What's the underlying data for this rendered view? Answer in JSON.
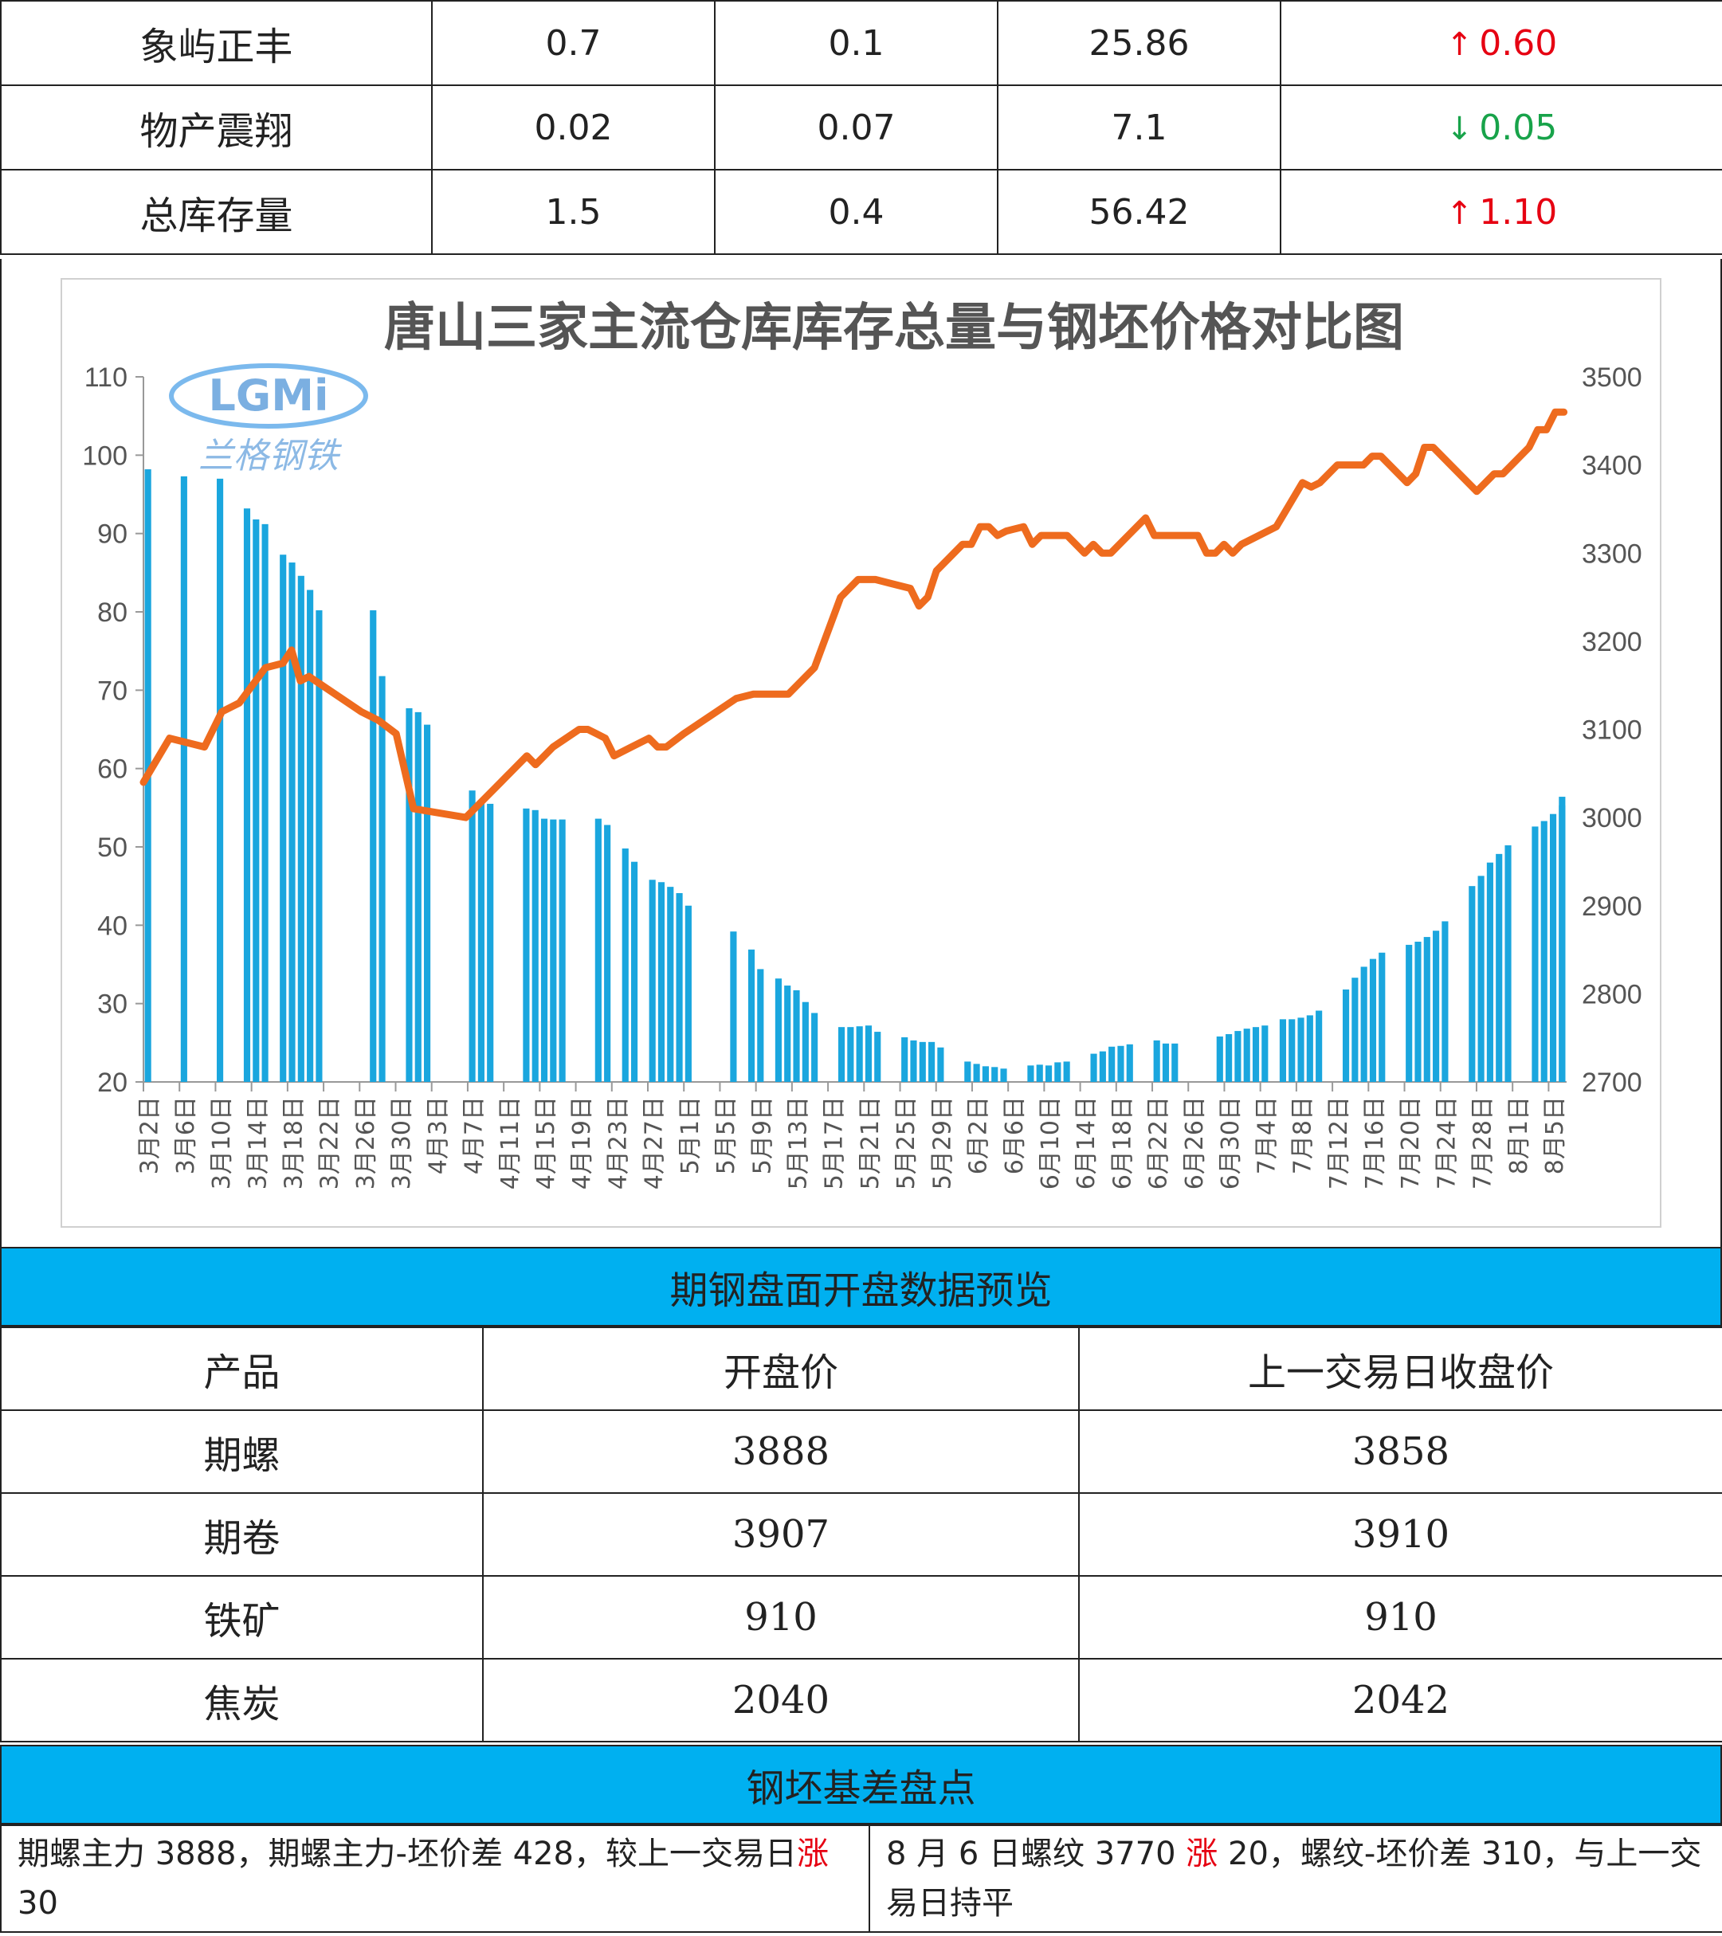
{
  "inventory_rows": [
    {
      "name": "象屿正丰",
      "v1": "0.7",
      "v2": "0.1",
      "v3": "25.86",
      "change_dir": "up",
      "change": "0.60"
    },
    {
      "name": "物产震翔",
      "v1": "0.02",
      "v2": "0.07",
      "v3": "7.1",
      "change_dir": "down",
      "change": "0.05"
    },
    {
      "name": "总库存量",
      "v1": "1.5",
      "v2": "0.4",
      "v3": "56.42",
      "change_dir": "up",
      "change": "1.10"
    }
  ],
  "arrows": {
    "up": "↑",
    "down": "↓"
  },
  "colors": {
    "up": "#e60012",
    "down": "#18a34a",
    "bar": "#1aa6de",
    "line": "#ee6b1e",
    "band": "#00b0f0"
  },
  "watermark": {
    "logo_text": "LGMi",
    "name_text": "兰格钢铁"
  },
  "chart_data": {
    "type": "bar+line",
    "title": "唐山三家主流仓库库存总量与钢坯价格对比图",
    "y_left": {
      "min": 20,
      "max": 110,
      "ticks": [
        20,
        30,
        40,
        50,
        60,
        70,
        80,
        90,
        100,
        110
      ]
    },
    "y_right": {
      "min": 2700,
      "max": 3500,
      "ticks": [
        2700,
        2800,
        2900,
        3000,
        3100,
        3200,
        3300,
        3400,
        3500
      ]
    },
    "x_labels": [
      "3月2日",
      "3月6日",
      "3月10日",
      "3月14日",
      "3月18日",
      "3月22日",
      "3月26日",
      "3月30日",
      "4月3日",
      "4月7日",
      "4月11日",
      "4月15日",
      "4月19日",
      "4月23日",
      "4月27日",
      "5月1日",
      "5月5日",
      "5月9日",
      "5月13日",
      "5月17日",
      "5月21日",
      "5月25日",
      "5月29日",
      "6月2日",
      "6月6日",
      "6月10日",
      "6月14日",
      "6月18日",
      "6月22日",
      "6月26日",
      "6月30日",
      "7月4日",
      "7月8日",
      "7月12日",
      "7月16日",
      "7月20日",
      "7月24日",
      "7月28日",
      "8月1日",
      "8月5日"
    ],
    "days_total": 158,
    "bars": [
      [
        0,
        98.2
      ],
      [
        4,
        97.3
      ],
      [
        8,
        97
      ],
      [
        11,
        93.2
      ],
      [
        12,
        91.8
      ],
      [
        13,
        91.2
      ],
      [
        15,
        87.3
      ],
      [
        16,
        86.3
      ],
      [
        17,
        84.6
      ],
      [
        18,
        82.8
      ],
      [
        19,
        80.2
      ],
      [
        25,
        80.2
      ],
      [
        26,
        71.8
      ],
      [
        29,
        67.7
      ],
      [
        30,
        67.2
      ],
      [
        31,
        65.6
      ],
      [
        36,
        57.2
      ],
      [
        37,
        55.7
      ],
      [
        38,
        55.5
      ],
      [
        42,
        54.9
      ],
      [
        43,
        54.7
      ],
      [
        44,
        53.6
      ],
      [
        45,
        53.5
      ],
      [
        46,
        53.5
      ],
      [
        50,
        53.6
      ],
      [
        51,
        52.8
      ],
      [
        53,
        49.8
      ],
      [
        54,
        48.1
      ],
      [
        56,
        45.8
      ],
      [
        57,
        45.5
      ],
      [
        58,
        44.9
      ],
      [
        59,
        44.1
      ],
      [
        60,
        42.5
      ],
      [
        65,
        39.2
      ],
      [
        67,
        36.9
      ],
      [
        68,
        34.4
      ],
      [
        70,
        33.2
      ],
      [
        71,
        32.3
      ],
      [
        72,
        31.7
      ],
      [
        73,
        30.2
      ],
      [
        74,
        28.8
      ],
      [
        77,
        27
      ],
      [
        78,
        27
      ],
      [
        79,
        27.1
      ],
      [
        80,
        27.2
      ],
      [
        81,
        26.4
      ],
      [
        84,
        25.7
      ],
      [
        85,
        25.3
      ],
      [
        86,
        25.1
      ],
      [
        87,
        25.1
      ],
      [
        88,
        24.4
      ],
      [
        91,
        22.6
      ],
      [
        92,
        22.3
      ],
      [
        93,
        22
      ],
      [
        94,
        21.9
      ],
      [
        95,
        21.7
      ],
      [
        98,
        22.1
      ],
      [
        99,
        22.2
      ],
      [
        100,
        22.1
      ],
      [
        101,
        22.5
      ],
      [
        102,
        22.6
      ],
      [
        105,
        23.6
      ],
      [
        106,
        23.9
      ],
      [
        107,
        24.5
      ],
      [
        108,
        24.6
      ],
      [
        109,
        24.8
      ],
      [
        112,
        25.3
      ],
      [
        113,
        24.9
      ],
      [
        114,
        24.9
      ],
      [
        119,
        25.8
      ],
      [
        120,
        26.1
      ],
      [
        121,
        26.5
      ],
      [
        122,
        26.8
      ],
      [
        123,
        27
      ],
      [
        124,
        27.2
      ],
      [
        126,
        28
      ],
      [
        127,
        28
      ],
      [
        128,
        28.2
      ],
      [
        129,
        28.5
      ],
      [
        130,
        29.1
      ],
      [
        133,
        31.8
      ],
      [
        134,
        33.3
      ],
      [
        135,
        34.7
      ],
      [
        136,
        35.7
      ],
      [
        137,
        36.5
      ],
      [
        140,
        37.5
      ],
      [
        141,
        37.9
      ],
      [
        142,
        38.5
      ],
      [
        143,
        39.3
      ],
      [
        144,
        40.5
      ],
      [
        147,
        45
      ],
      [
        148,
        46.3
      ],
      [
        149,
        48
      ],
      [
        150,
        49.1
      ],
      [
        151,
        50.2
      ],
      [
        154,
        52.6
      ],
      [
        155,
        53.3
      ],
      [
        156,
        54.2
      ],
      [
        157,
        55.3
      ],
      [
        158,
        56.4
      ]
    ],
    "line": [
      [
        0,
        3040
      ],
      [
        3,
        3090
      ],
      [
        7,
        3080
      ],
      [
        9,
        3120
      ],
      [
        11,
        3130
      ],
      [
        14,
        3170
      ],
      [
        16,
        3175
      ],
      [
        17,
        3190
      ],
      [
        18,
        3155
      ],
      [
        19,
        3160
      ],
      [
        25,
        3120
      ],
      [
        27,
        3110
      ],
      [
        29,
        3095
      ],
      [
        31,
        3010
      ],
      [
        37,
        3000
      ],
      [
        41,
        3040
      ],
      [
        44,
        3070
      ],
      [
        45,
        3060
      ],
      [
        47,
        3080
      ],
      [
        50,
        3100
      ],
      [
        51,
        3100
      ],
      [
        52,
        3095
      ],
      [
        53,
        3090
      ],
      [
        54,
        3070
      ],
      [
        56,
        3080
      ],
      [
        58,
        3090
      ],
      [
        59,
        3080
      ],
      [
        60,
        3080
      ],
      [
        62,
        3095
      ],
      [
        65,
        3115
      ],
      [
        68,
        3135
      ],
      [
        70,
        3140
      ],
      [
        74,
        3140
      ],
      [
        77,
        3170
      ],
      [
        80,
        3250
      ],
      [
        82,
        3270
      ],
      [
        84,
        3270
      ],
      [
        86,
        3265
      ],
      [
        88,
        3260
      ],
      [
        89,
        3240
      ],
      [
        90,
        3250
      ],
      [
        91,
        3280
      ],
      [
        94,
        3310
      ],
      [
        95,
        3310
      ],
      [
        96,
        3330
      ],
      [
        97,
        3330
      ],
      [
        98,
        3320
      ],
      [
        99,
        3325
      ],
      [
        101,
        3330
      ],
      [
        102,
        3310
      ],
      [
        103,
        3320
      ],
      [
        106,
        3320
      ],
      [
        108,
        3300
      ],
      [
        109,
        3310
      ],
      [
        110,
        3300
      ],
      [
        111,
        3300
      ],
      [
        113,
        3320
      ],
      [
        115,
        3340
      ],
      [
        116,
        3320
      ],
      [
        121,
        3320
      ],
      [
        122,
        3300
      ],
      [
        123,
        3300
      ],
      [
        124,
        3310
      ],
      [
        125,
        3300
      ],
      [
        126,
        3310
      ],
      [
        130,
        3330
      ],
      [
        133,
        3380
      ],
      [
        134,
        3375
      ],
      [
        135,
        3380
      ],
      [
        137,
        3400
      ],
      [
        140,
        3400
      ],
      [
        141,
        3410
      ],
      [
        142,
        3410
      ],
      [
        145,
        3380
      ],
      [
        146,
        3390
      ],
      [
        147,
        3420
      ],
      [
        148,
        3420
      ],
      [
        150,
        3400
      ],
      [
        153,
        3370
      ],
      [
        155,
        3390
      ],
      [
        156,
        3390
      ],
      [
        159,
        3420
      ],
      [
        160,
        3440
      ],
      [
        161,
        3440
      ],
      [
        162,
        3460
      ],
      [
        163,
        3460
      ]
    ]
  },
  "futures": {
    "title": "期钢盘面开盘数据预览",
    "headers": [
      "产品",
      "开盘价",
      "上一交易日收盘价"
    ],
    "rows": [
      {
        "name": "期螺",
        "open": "3888",
        "prev": "3858"
      },
      {
        "name": "期卷",
        "open": "3907",
        "prev": "3910"
      },
      {
        "name": "铁矿",
        "open": "910",
        "prev": "910"
      },
      {
        "name": "焦炭",
        "open": "2040",
        "prev": "2042"
      }
    ]
  },
  "basis": {
    "title": "钢坯基差盘点",
    "left": {
      "part1": "期螺主力 3888，期螺主力-坯价差 428，较上一交易日",
      "hl": "涨",
      "part2": " 30"
    },
    "right": {
      "part1": "8 月 6 日螺纹 3770 ",
      "hl": "涨",
      "part2": " 20，螺纹-坯价差 310，与上一交易日持平"
    }
  }
}
